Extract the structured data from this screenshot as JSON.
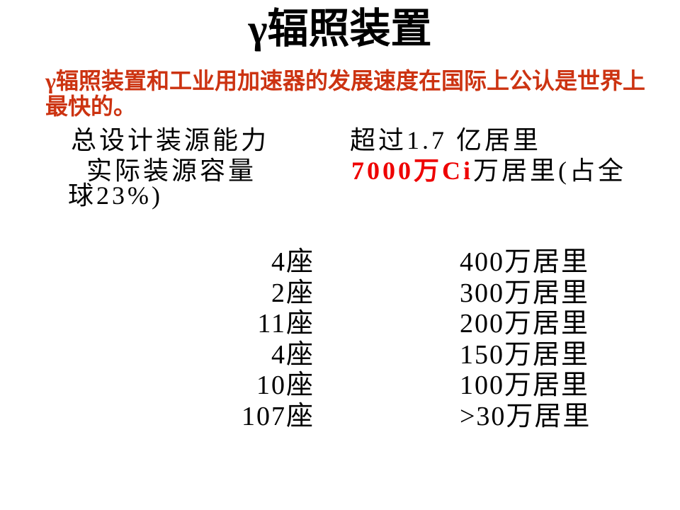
{
  "slide": {
    "title": "γ辐照装置",
    "intro": {
      "line1": "γ辐照装置和工业用加速器的发展速度在国际上公认是世界上",
      "line2": "最快的。"
    },
    "capacity": {
      "design_label": "总设计装源能力",
      "design_value": "超过1.7 亿居里",
      "actual_label": "实际装源容量",
      "actual_value_highlight": "7000万Ci",
      "actual_value_rest": "万居里(占全",
      "actual_value_wrap": "球23%)"
    },
    "sources": [
      {
        "count": "4座",
        "capacity": "400万居里"
      },
      {
        "count": "2座",
        "capacity": "300万居里"
      },
      {
        "count": "11座",
        "capacity": "200万居里"
      },
      {
        "count": "4座",
        "capacity": "150万居里"
      },
      {
        "count": "10座",
        "capacity": "100万居里"
      },
      {
        "count": "107座",
        "capacity": ">30万居里"
      }
    ],
    "colors": {
      "background": "#ffffff",
      "body_text": "#000000",
      "intro_red": "#cc3311",
      "highlight_red": "#ee0000"
    }
  }
}
